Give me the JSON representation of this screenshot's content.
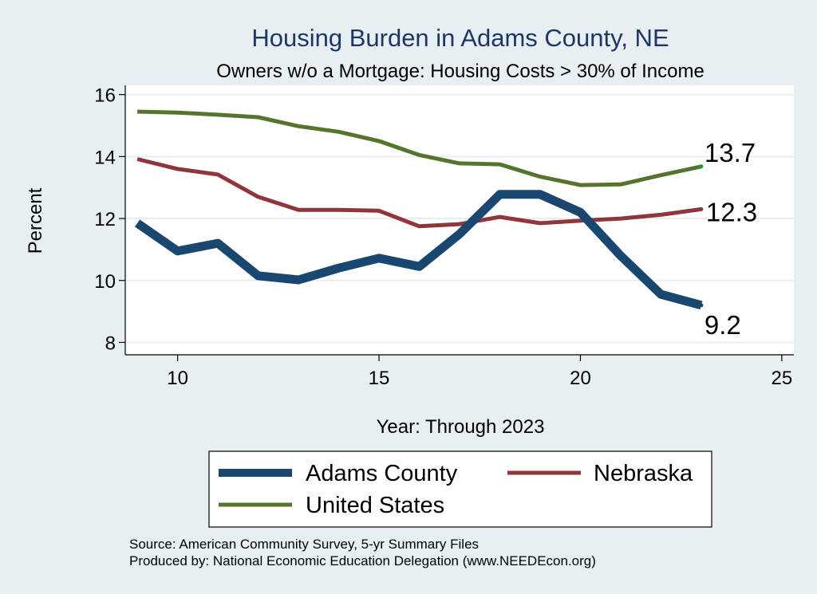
{
  "chart_data": {
    "type": "line",
    "title": "Housing Burden in Adams County, NE",
    "subtitle": "Owners w/o a Mortgage: Housing Costs > 30% of Income",
    "xlabel": "Year: Through 2023",
    "ylabel": "Percent",
    "xlim": [
      8.7,
      25.3
    ],
    "ylim": [
      7.6,
      16.3
    ],
    "xticks": [
      10,
      15,
      20,
      25
    ],
    "yticks": [
      8,
      10,
      12,
      14,
      16
    ],
    "grid": "horizontal",
    "legend_position": "bottom",
    "x": [
      9,
      10,
      11,
      12,
      13,
      14,
      15,
      16,
      17,
      18,
      19,
      20,
      21,
      22,
      23
    ],
    "series": [
      {
        "name": "Adams County",
        "color": "#1a476f",
        "values": [
          11.85,
          10.95,
          11.2,
          10.15,
          10.02,
          10.4,
          10.72,
          10.45,
          11.5,
          12.78,
          12.78,
          12.2,
          10.8,
          9.55,
          9.2
        ],
        "end_label": "9.2"
      },
      {
        "name": "Nebraska",
        "color": "#90353b",
        "values": [
          13.92,
          13.6,
          13.42,
          12.7,
          12.28,
          12.28,
          12.25,
          11.75,
          11.82,
          12.05,
          11.85,
          11.93,
          12.0,
          12.12,
          12.3
        ],
        "end_label": "12.3"
      },
      {
        "name": "United States",
        "color": "#55752f",
        "values": [
          15.45,
          15.42,
          15.35,
          15.27,
          14.98,
          14.8,
          14.5,
          14.05,
          13.78,
          13.75,
          13.35,
          13.08,
          13.1,
          13.4,
          13.68
        ],
        "end_label": "13.7"
      }
    ],
    "notes": [
      "Source: American Community Survey, 5-yr Summary Files",
      "Produced by: National Economic Education Delegation (www.NEEDEcon.org)"
    ]
  }
}
